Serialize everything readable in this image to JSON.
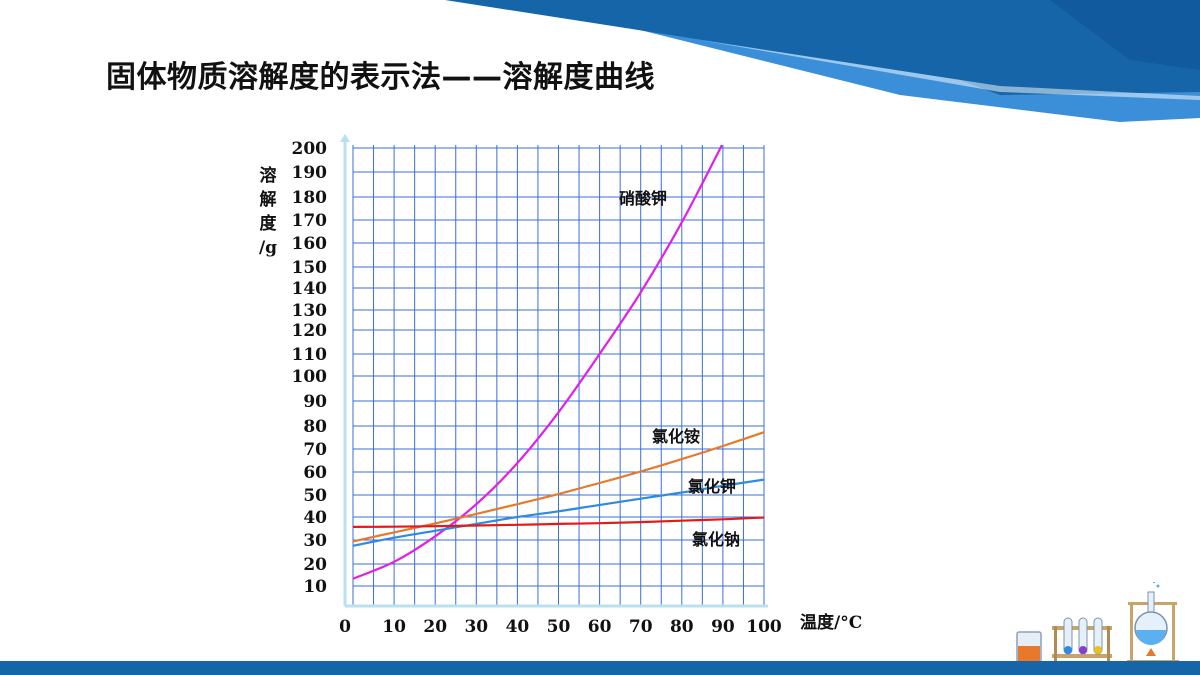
{
  "slide": {
    "title": "固体物质溶解度的表示法——溶解度曲线"
  },
  "colors": {
    "banner_dark": "#1565a8",
    "banner_light": "#3b8fd8",
    "grid": "#3a6fd8",
    "bottom_bar": "#1565a8"
  },
  "chart_data": {
    "type": "line",
    "xlabel": "温度/°C",
    "ylabel_chars": [
      "溶",
      "解",
      "度",
      "/g"
    ],
    "x_ticks": [
      "0",
      "10",
      "20",
      "30",
      "40",
      "50",
      "60",
      "70",
      "80",
      "90",
      "100"
    ],
    "y_ticks": [
      "10",
      "20",
      "30",
      "40",
      "50",
      "60",
      "70",
      "80",
      "90",
      "100",
      "110",
      "120",
      "130",
      "140",
      "150",
      "160",
      "170",
      "180",
      "190",
      "200"
    ],
    "xlim": [
      0,
      100
    ],
    "ylim": [
      0,
      200
    ],
    "grid": true,
    "series": [
      {
        "name": "硝酸钾",
        "color": "#e020e8",
        "x": [
          0,
          10,
          20,
          30,
          40,
          50,
          60,
          70,
          80,
          90
        ],
        "y": [
          13.3,
          20.9,
          31.6,
          45.8,
          63.9,
          85.5,
          110,
          138,
          169,
          202
        ]
      },
      {
        "name": "氯化铵",
        "color": "#e8792a",
        "x": [
          0,
          10,
          20,
          30,
          40,
          50,
          60,
          70,
          80,
          90,
          100
        ],
        "y": [
          29.4,
          33.3,
          37.2,
          41.4,
          45.8,
          50.4,
          55.2,
          60.2,
          65.6,
          71.3,
          77.3
        ]
      },
      {
        "name": "氯化钾",
        "color": "#2f8ae0",
        "x": [
          0,
          10,
          20,
          30,
          40,
          50,
          60,
          70,
          80,
          90,
          100
        ],
        "y": [
          27.6,
          31.0,
          34.0,
          37.0,
          40.0,
          42.6,
          45.5,
          48.3,
          51.1,
          54.0,
          56.7
        ]
      },
      {
        "name": "氯化钠",
        "color": "#e81818",
        "x": [
          0,
          10,
          20,
          30,
          40,
          50,
          60,
          70,
          80,
          90,
          100
        ],
        "y": [
          35.7,
          35.8,
          36.0,
          36.3,
          36.6,
          37.0,
          37.3,
          37.8,
          38.4,
          39.0,
          39.8
        ]
      }
    ]
  }
}
